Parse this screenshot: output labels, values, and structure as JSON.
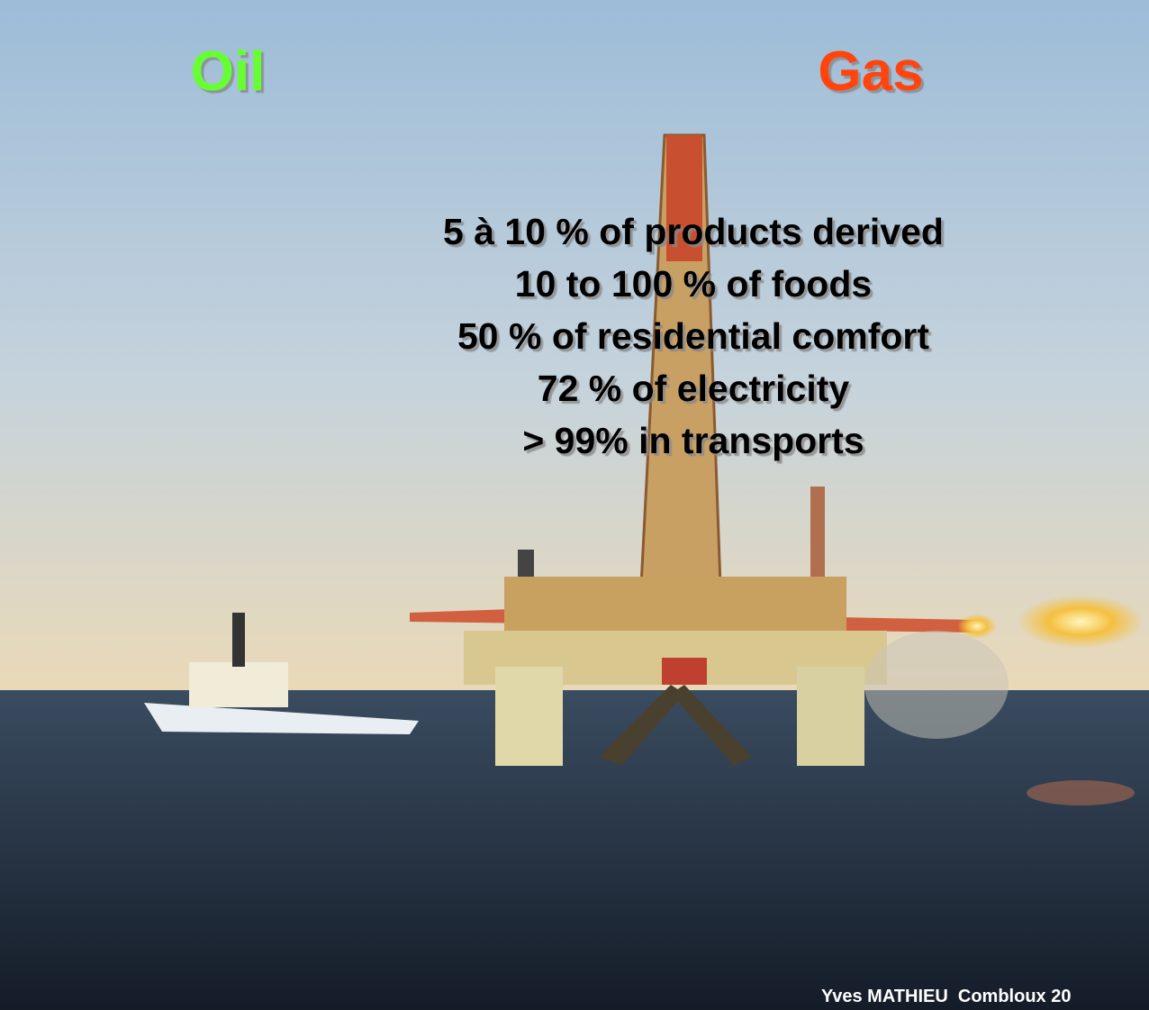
{
  "header": {
    "left": "Oil",
    "right": "Gas"
  },
  "lines": [
    "5 à 10 % of products derived",
    "10 to 100 % of foods",
    "50 % of residential comfort",
    "72 % of electricity",
    "> 99% in transports"
  ],
  "footer": "Yves MATHIEU  Combloux 20"
}
